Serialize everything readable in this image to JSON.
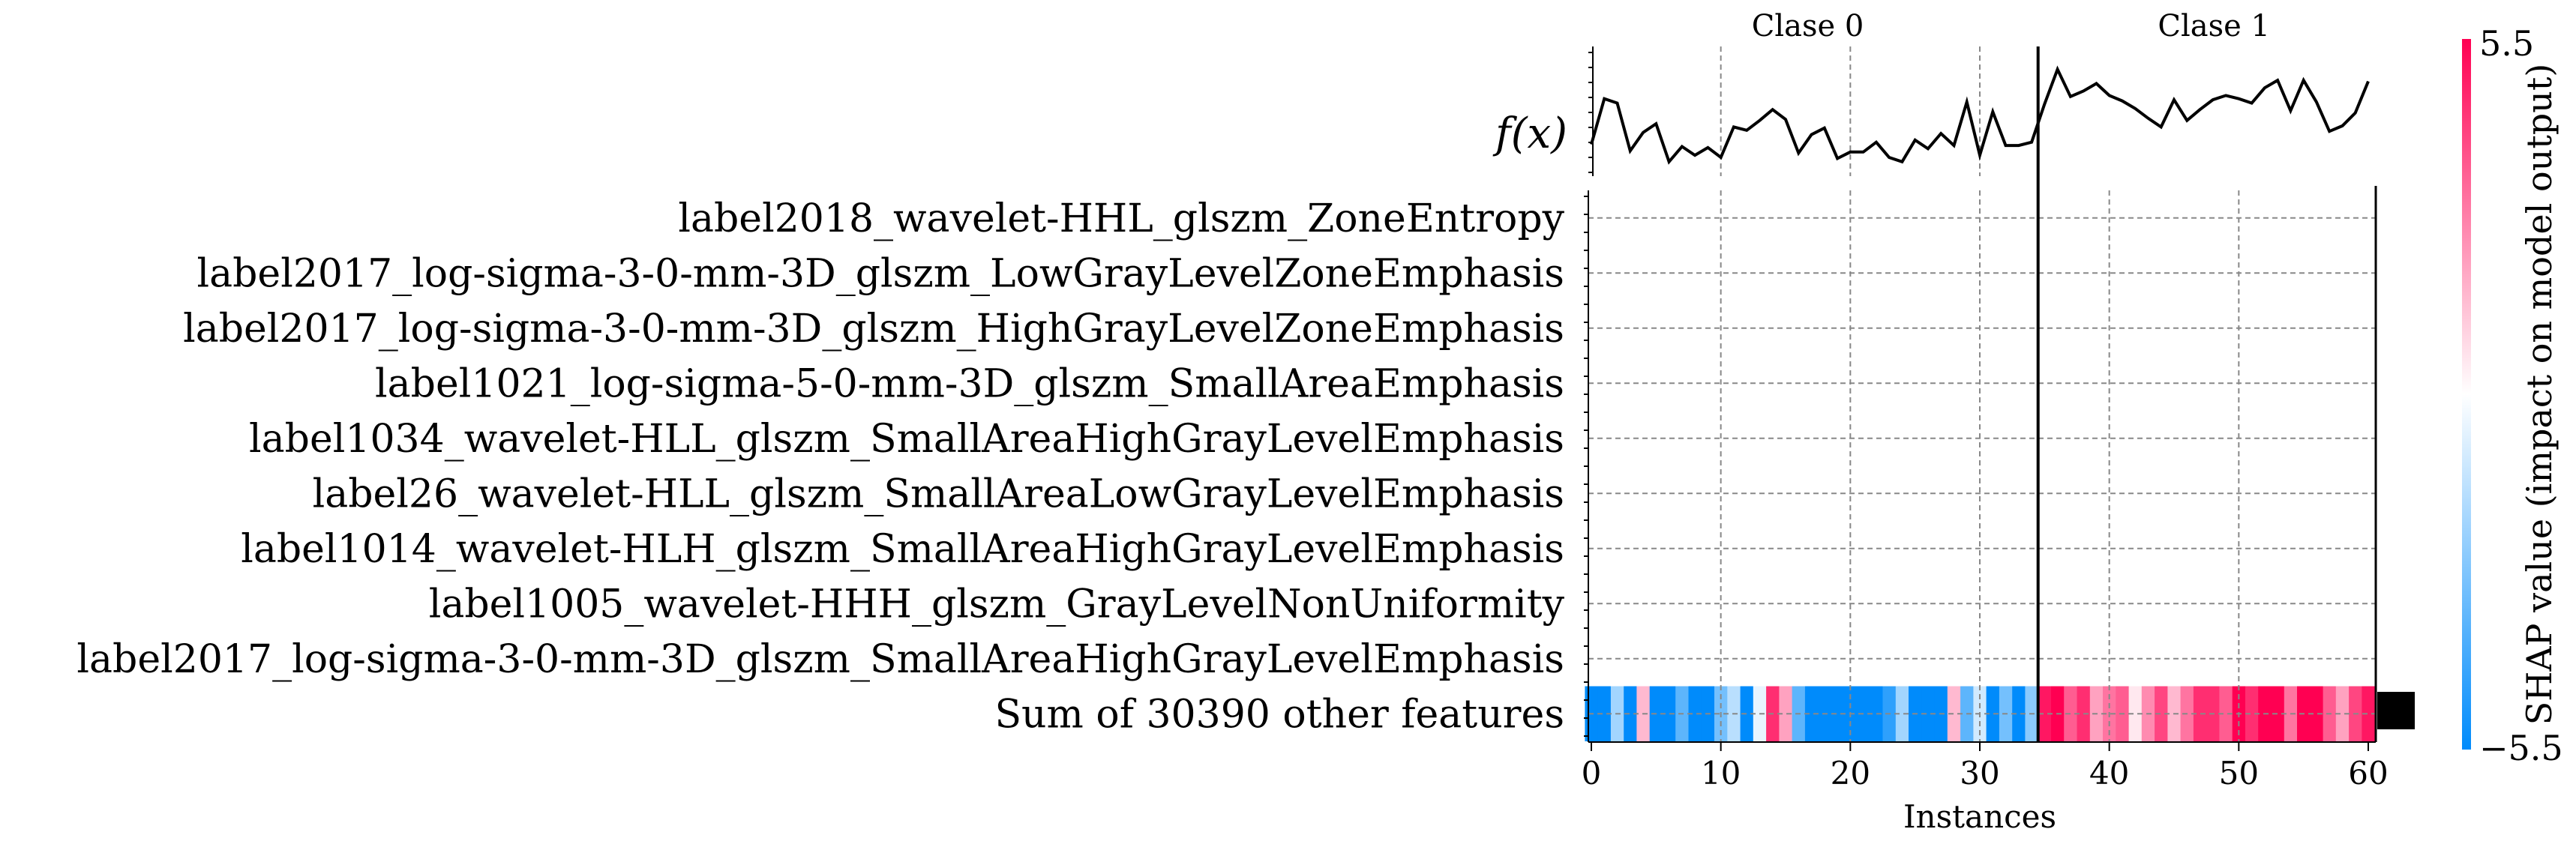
{
  "chart_data": {
    "type": "heatmap",
    "title": "",
    "xlabel": "Instances",
    "xlim": [
      -0.5,
      60.5
    ],
    "x_ticks": [
      0,
      10,
      20,
      30,
      40,
      50,
      60
    ],
    "class_labels": [
      {
        "label": "Clase 0",
        "start": 0,
        "end": 34
      },
      {
        "label": "Clase 1",
        "start": 35,
        "end": 60
      }
    ],
    "class_boundary": 34.5,
    "fx_label": "f(x)",
    "fx_values": [
      0.12,
      0.54,
      0.5,
      0.06,
      0.23,
      0.31,
      -0.04,
      0.1,
      0.02,
      0.09,
      0.0,
      0.28,
      0.25,
      0.34,
      0.44,
      0.35,
      0.04,
      0.21,
      0.27,
      -0.01,
      0.05,
      0.05,
      0.14,
      0.0,
      -0.04,
      0.16,
      0.08,
      0.22,
      0.11,
      0.51,
      0.02,
      0.42,
      0.11,
      0.11,
      0.14,
      0.49,
      0.81,
      0.56,
      0.61,
      0.68,
      0.57,
      0.52,
      0.45,
      0.36,
      0.28,
      0.53,
      0.34,
      0.44,
      0.53,
      0.57,
      0.54,
      0.5,
      0.64,
      0.71,
      0.43,
      0.71,
      0.51,
      0.24,
      0.29,
      0.41,
      0.7
    ],
    "features": [
      "label2018_wavelet-HHL_glszm_ZoneEntropy",
      "label2017_log-sigma-3-0-mm-3D_glszm_LowGrayLevelZoneEmphasis",
      "label2017_log-sigma-3-0-mm-3D_glszm_HighGrayLevelZoneEmphasis",
      "label1021_log-sigma-5-0-mm-3D_glszm_SmallAreaEmphasis",
      "label1034_wavelet-HLL_glszm_SmallAreaHighGrayLevelEmphasis",
      "label26_wavelet-HLL_glszm_SmallAreaLowGrayLevelEmphasis",
      "label1014_wavelet-HLH_glszm_SmallAreaHighGrayLevelEmphasis",
      "label1005_wavelet-HHH_glszm_GrayLevelNonUniformity",
      "label2017_log-sigma-3-0-mm-3D_glszm_SmallAreaHighGrayLevelEmphasis",
      "Sum of 30390 other features"
    ],
    "sum_row_values": [
      -5.5,
      -5.5,
      -2.0,
      -5.5,
      1.5,
      -5.5,
      -5.5,
      -3.5,
      -5.5,
      -5.5,
      -3.0,
      -1.5,
      -5.5,
      -0.5,
      4.5,
      2.0,
      -3.5,
      -5.5,
      -5.5,
      -5.5,
      -5.5,
      -5.5,
      -5.5,
      -4.5,
      -2.0,
      -5.5,
      -5.5,
      -5.5,
      1.5,
      -3.5,
      -1.0,
      -5.5,
      -3.0,
      -5.5,
      -2.5,
      5.0,
      5.5,
      3.5,
      4.5,
      2.0,
      3.0,
      3.5,
      0.5,
      2.5,
      4.0,
      1.5,
      3.0,
      4.5,
      4.5,
      3.5,
      5.5,
      4.5,
      5.5,
      5.5,
      3.0,
      5.5,
      5.5,
      3.5,
      2.0,
      4.0,
      5.0
    ],
    "feature_importance_bar": "black",
    "colorbar": {
      "title": "SHAP value (impact on model output)",
      "max_label": "5.5",
      "min_label": "−5.5",
      "vmin": -5.5,
      "vmax": 5.5,
      "low_color": "#008bfb",
      "mid_color": "#ffffff",
      "high_color": "#ff0052"
    }
  }
}
